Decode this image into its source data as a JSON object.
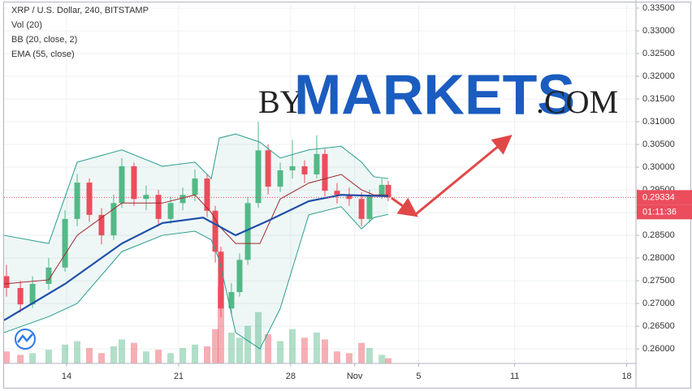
{
  "chart_data": {
    "type": "candlestick",
    "title": "XRP / U.S. Dollar, 240, BITSTAMP",
    "legend": [
      "Vol (20)",
      "BB (20, close, 2)",
      "EMA (55, close)"
    ],
    "watermark": [
      "BY",
      "MARKETS",
      ".COM"
    ],
    "up_color": "#53b987",
    "down_color": "#eb4d5c",
    "x": [
      10.24,
      11.11,
      11.87,
      12.88,
      13.9,
      14.66,
      15.42,
      16.18,
      16.94,
      17.45,
      18.21,
      18.97,
      19.74,
      20.5,
      21.26,
      22.02,
      22.78,
      23.29,
      23.64,
      24.3,
      24.81,
      25.32,
      25.98,
      26.59,
      27.35,
      28.11,
      28.87,
      29.63,
      30.14,
      30.9,
      31.66,
      32.43,
      32.93,
      33.7,
      34.1
    ],
    "open": [
      0.276,
      0.2734,
      0.2698,
      0.2743,
      0.2779,
      0.2886,
      0.2966,
      0.2895,
      0.285,
      0.2921,
      0.3002,
      0.293,
      0.2939,
      0.2886,
      0.2921,
      0.2939,
      0.2975,
      0.2904,
      0.2814,
      0.2689,
      0.2725,
      0.2796,
      0.2921,
      0.3037,
      0.2957,
      0.2993,
      0.3002,
      0.2984,
      0.3029,
      0.2948,
      0.2939,
      0.293,
      0.2886,
      0.2939,
      0.2961
    ],
    "high": [
      0.2785,
      0.275,
      0.276,
      0.28,
      0.2905,
      0.2985,
      0.2975,
      0.291,
      0.294,
      0.302,
      0.301,
      0.296,
      0.295,
      0.2935,
      0.2955,
      0.2995,
      0.2985,
      0.2915,
      0.2825,
      0.2745,
      0.281,
      0.2935,
      0.31,
      0.305,
      0.301,
      0.306,
      0.3015,
      0.307,
      0.304,
      0.2965,
      0.2955,
      0.2945,
      0.295,
      0.2975,
      0.297
    ],
    "low": [
      0.2715,
      0.268,
      0.269,
      0.273,
      0.277,
      0.287,
      0.288,
      0.283,
      0.284,
      0.291,
      0.2915,
      0.2905,
      0.287,
      0.2875,
      0.2905,
      0.2925,
      0.289,
      0.279,
      0.267,
      0.2675,
      0.2715,
      0.2785,
      0.291,
      0.294,
      0.2945,
      0.2975,
      0.2965,
      0.2975,
      0.2935,
      0.292,
      0.2915,
      0.287,
      0.2878,
      0.293,
      0.2925
    ],
    "close": [
      0.2734,
      0.2698,
      0.2743,
      0.2779,
      0.2886,
      0.2966,
      0.2895,
      0.285,
      0.2921,
      0.3002,
      0.293,
      0.2939,
      0.2886,
      0.2921,
      0.2939,
      0.2975,
      0.2904,
      0.2814,
      0.2689,
      0.2725,
      0.2796,
      0.2921,
      0.3037,
      0.2957,
      0.2993,
      0.3002,
      0.2984,
      0.3029,
      0.2948,
      0.2939,
      0.293,
      0.2886,
      0.2939,
      0.2961,
      0.29334
    ],
    "volume": [
      14,
      10,
      12,
      16,
      22,
      26,
      18,
      12,
      20,
      28,
      24,
      14,
      16,
      12,
      18,
      22,
      20,
      40,
      90,
      36,
      30,
      44,
      60,
      34,
      26,
      40,
      30,
      36,
      28,
      14,
      12,
      24,
      18,
      10,
      6
    ],
    "countdown": "01:11:36",
    "lines": [
      {
        "name": "BB upper",
        "color": "#2a9d8f",
        "x": [
          10.09,
          12.88,
          14.66,
          17.45,
          19.99,
          22.02,
          23.04,
          23.54,
          24.56,
          26.08,
          27.35,
          29.13,
          31.16,
          32.43,
          33.19,
          34.1
        ],
        "values": [
          0.285,
          0.2832,
          0.3011,
          0.3038,
          0.3002,
          0.3011,
          0.2975,
          0.3064,
          0.3073,
          0.3055,
          0.302,
          0.3038,
          0.3046,
          0.3011,
          0.2979,
          0.2975
        ]
      },
      {
        "name": "BB lower",
        "color": "#2a9d8f",
        "x": [
          10.09,
          12.88,
          14.66,
          17.45,
          19.99,
          22.02,
          23.04,
          23.54,
          24.56,
          26.08,
          27.35,
          29.13,
          31.16,
          32.43,
          33.19,
          34.1
        ],
        "values": [
          0.2636,
          0.2671,
          0.27,
          0.2814,
          0.285,
          0.2859,
          0.284,
          0.2796,
          0.2636,
          0.26,
          0.2689,
          0.2895,
          0.2913,
          0.2864,
          0.2889,
          0.2896
        ]
      },
      {
        "name": "BB basis",
        "color": "#a0282a",
        "x": [
          10.09,
          12.88,
          14.66,
          17.45,
          19.99,
          22.02,
          23.04,
          23.54,
          24.56,
          26.08,
          27.35,
          29.13,
          31.16,
          32.43,
          33.19,
          34.1
        ],
        "values": [
          0.2743,
          0.2752,
          0.285,
          0.2921,
          0.2921,
          0.2939,
          0.29,
          0.287,
          0.2832,
          0.2832,
          0.293,
          0.2965,
          0.2984,
          0.295,
          0.2939,
          0.2939
        ]
      },
      {
        "name": "EMA",
        "color": "#1f4fa8",
        "x": [
          10.09,
          13.9,
          17.45,
          19.99,
          22.53,
          24.56,
          26.59,
          29.13,
          31.16,
          34.1
        ],
        "values": [
          0.2663,
          0.2743,
          0.2832,
          0.2877,
          0.2889,
          0.285,
          0.2882,
          0.2925,
          0.2939,
          0.2936
        ]
      }
    ],
    "xlim": [
      10.09,
      49.58
    ],
    "xticks": [
      14,
      21,
      28,
      {
        "value": 32,
        "label": "Nov"
      },
      {
        "value": 36,
        "label": "5"
      },
      {
        "value": 42,
        "label": "11"
      },
      {
        "value": 49,
        "label": "18"
      }
    ],
    "ylim": [
      0.2568,
      0.3359
    ],
    "yticks": [
      {
        "value": 0.335,
        "label": "0.33500"
      },
      {
        "value": 0.33,
        "label": "0.33000"
      },
      {
        "value": 0.325,
        "label": "0.32500"
      },
      {
        "value": 0.32,
        "label": "0.32000"
      },
      {
        "value": 0.315,
        "label": "0.31500"
      },
      {
        "value": 0.31,
        "label": "0.31000"
      },
      {
        "value": 0.305,
        "label": "0.30500"
      },
      {
        "value": 0.3,
        "label": "0.30000"
      },
      {
        "value": 0.295,
        "label": "0.29500"
      },
      {
        "value": 0.29,
        "label": "0.29000"
      },
      {
        "value": 0.285,
        "label": "0.28500"
      },
      {
        "value": 0.28,
        "label": "0.28000"
      },
      {
        "value": 0.275,
        "label": "0.27500"
      },
      {
        "value": 0.27,
        "label": "0.27000"
      },
      {
        "value": 0.265,
        "label": "0.26500"
      },
      {
        "value": 0.26,
        "label": "0.26000"
      }
    ],
    "grid": true
  }
}
